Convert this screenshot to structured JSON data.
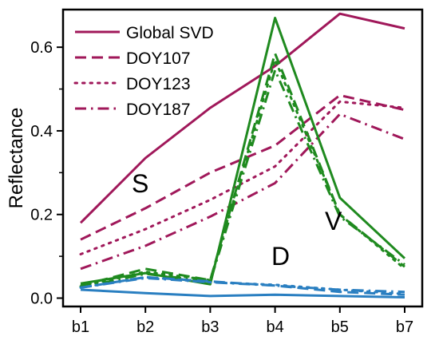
{
  "chart_data": {
    "type": "line",
    "title": "",
    "xlabel": "",
    "ylabel": "Reflectance",
    "categories": [
      "b1",
      "b2",
      "b3",
      "b4",
      "b5",
      "b7"
    ],
    "ylim": [
      -0.02,
      0.69
    ],
    "yticks": [
      "0.0",
      "0.2",
      "0.4",
      "0.6"
    ],
    "ytick_values": [
      0.0,
      0.2,
      0.4,
      0.6
    ],
    "grid": false,
    "legend": {
      "placement": "top-left",
      "entries": [
        "Global SVD",
        "DOY107",
        "DOY123",
        "DOY187"
      ]
    },
    "annotations": [
      "S",
      "V",
      "D"
    ],
    "colors": {
      "soil": "#a0185a",
      "vegetation": "#1f8a1f",
      "dark": "#2a7fc1"
    },
    "series": [
      {
        "name": "Global SVD",
        "group": "soil",
        "style": "solid",
        "values": [
          0.18,
          0.335,
          0.455,
          0.555,
          0.68,
          0.645
        ]
      },
      {
        "name": "DOY107",
        "group": "soil",
        "style": "dashed",
        "values": [
          0.14,
          0.215,
          0.3,
          0.365,
          0.485,
          0.45
        ]
      },
      {
        "name": "DOY123",
        "group": "soil",
        "style": "dotted",
        "values": [
          0.105,
          0.165,
          0.235,
          0.315,
          0.47,
          0.455
        ]
      },
      {
        "name": "DOY187",
        "group": "soil",
        "style": "dashdot",
        "values": [
          0.07,
          0.125,
          0.195,
          0.275,
          0.44,
          0.38
        ]
      },
      {
        "group": "vegetation",
        "style": "solid",
        "values": [
          0.035,
          0.06,
          0.033,
          0.67,
          0.24,
          0.095
        ]
      },
      {
        "group": "vegetation",
        "style": "dashed",
        "values": [
          0.03,
          0.07,
          0.043,
          0.585,
          0.2,
          0.075
        ]
      },
      {
        "group": "vegetation",
        "style": "dotted",
        "values": [
          0.028,
          0.063,
          0.043,
          0.57,
          0.2,
          0.07
        ]
      },
      {
        "group": "vegetation",
        "style": "dashdot",
        "values": [
          0.025,
          0.058,
          0.04,
          0.545,
          0.195,
          0.08
        ]
      },
      {
        "group": "dark",
        "style": "solid",
        "values": [
          0.02,
          0.012,
          0.005,
          0.008,
          0.005,
          0.002
        ]
      },
      {
        "group": "dark",
        "style": "dashed",
        "values": [
          0.025,
          0.05,
          0.04,
          0.03,
          0.015,
          0.008
        ]
      },
      {
        "group": "dark",
        "style": "dotted",
        "values": [
          0.025,
          0.05,
          0.038,
          0.032,
          0.02,
          0.01
        ]
      },
      {
        "group": "dark",
        "style": "dashdot",
        "values": [
          0.025,
          0.048,
          0.038,
          0.03,
          0.02,
          0.015
        ]
      }
    ]
  }
}
